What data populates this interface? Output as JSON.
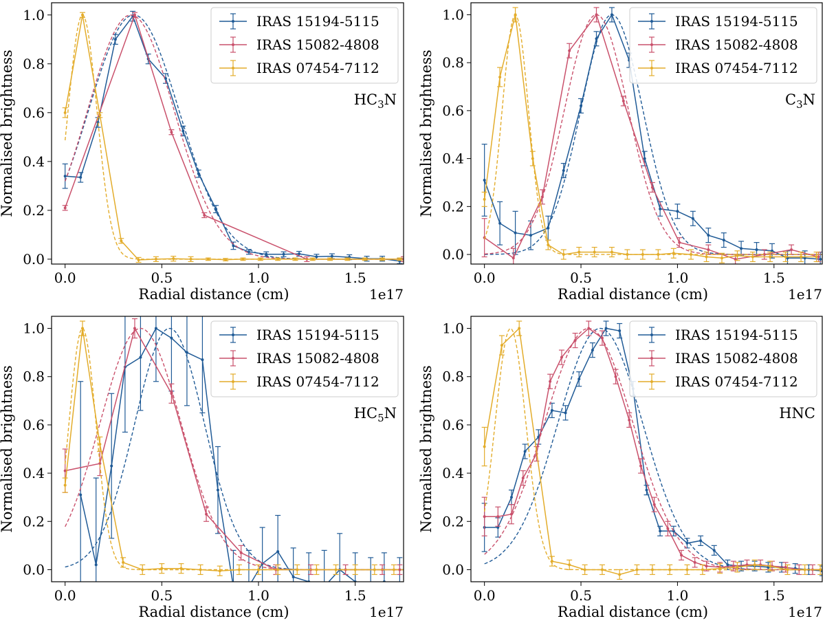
{
  "colors": {
    "blue": "#1f5a96",
    "red": "#c9506b",
    "yellow": "#e3ac2a"
  },
  "chart_data": [
    {
      "type": "line",
      "panel": "top-left",
      "molecule": {
        "base": "HC",
        "sub": "3",
        "rest": "N"
      },
      "xlabel": "Radial distance (cm)",
      "ylabel": "Normalised brightness",
      "x_offset_label": "1e17",
      "xlim": [
        -0.07,
        1.75
      ],
      "ylim": [
        -0.02,
        1.05
      ],
      "xticks": [
        "0.0",
        "0.5",
        "1.0",
        "1.5"
      ],
      "yticks": [
        "0.0",
        "0.2",
        "0.4",
        "0.6",
        "0.8",
        "1.0"
      ],
      "legend": [
        "IRAS 15194-5115",
        "IRAS 15082-4808",
        "IRAS 07454-7112"
      ],
      "legend_position": "top-right",
      "series": [
        {
          "name": "IRAS 15194-5115",
          "color_key": "blue",
          "x": [
            0.0,
            0.08,
            0.17,
            0.26,
            0.35,
            0.43,
            0.52,
            0.61,
            0.69,
            0.78,
            0.87,
            0.95,
            1.04,
            1.13,
            1.21,
            1.3,
            1.38,
            1.47,
            1.56,
            1.64,
            1.73
          ],
          "y": [
            0.34,
            0.335,
            0.56,
            0.9,
            0.995,
            0.82,
            0.74,
            0.525,
            0.35,
            0.205,
            0.055,
            0.03,
            0.02,
            0.02,
            0.022,
            0.01,
            0.012,
            0.008,
            0.002,
            0.002,
            -0.008
          ],
          "err": [
            0.05,
            0.02,
            0.02,
            0.02,
            0.02,
            0.02,
            0.02,
            0.02,
            0.015,
            0.015,
            0.015,
            0.01,
            0.01,
            0.01,
            0.01,
            0.01,
            0.01,
            0.01,
            0.01,
            0.01,
            0.01
          ],
          "fit": {
            "amp": 1.0,
            "mu": 0.355,
            "sigma": 0.235
          }
        },
        {
          "name": "IRAS 15082-4808",
          "color_key": "red",
          "x": [
            0.0,
            0.36,
            0.55,
            0.72,
            1.25,
            1.75
          ],
          "y": [
            0.21,
            1.0,
            0.52,
            0.18,
            0.0,
            0.0
          ],
          "err": [
            0.01,
            0.01,
            0.01,
            0.01,
            0.01,
            0.01
          ],
          "fit": {
            "amp": 1.0,
            "mu": 0.34,
            "sigma": 0.225
          }
        },
        {
          "name": "IRAS 07454-7112",
          "color_key": "yellow",
          "x": [
            0.0,
            0.09,
            0.18,
            0.29,
            0.38,
            0.47,
            0.56,
            0.65,
            0.74,
            0.83,
            0.92,
            1.01,
            1.1,
            1.19,
            1.28,
            1.37,
            1.46,
            1.55,
            1.64,
            1.73
          ],
          "y": [
            0.6,
            1.0,
            0.59,
            0.075,
            -0.003,
            0.0,
            0.002,
            0.0,
            0.0,
            -0.002,
            0.0,
            0.0,
            0.0,
            0.0,
            0.0,
            0.0,
            0.0,
            0.0,
            0.0,
            0.0
          ],
          "err": [
            0.02,
            0.01,
            0.01,
            0.01,
            0.01,
            0.01,
            0.01,
            0.01,
            0.005,
            0.005,
            0.005,
            0.005,
            0.005,
            0.005,
            0.005,
            0.005,
            0.005,
            0.005,
            0.005,
            0.005
          ],
          "fit": {
            "amp": 1.0,
            "mu": 0.09,
            "sigma": 0.075
          }
        }
      ]
    },
    {
      "type": "line",
      "panel": "top-right",
      "molecule": {
        "base": "C",
        "sub": "3",
        "rest": "N"
      },
      "xlabel": "Radial distance (cm)",
      "ylabel": "Normalised brightness",
      "x_offset_label": "1e17",
      "xlim": [
        -0.07,
        1.75
      ],
      "ylim": [
        -0.04,
        1.05
      ],
      "xticks": [
        "0.0",
        "0.5",
        "1.0",
        "1.5"
      ],
      "yticks": [
        "0.0",
        "0.2",
        "0.4",
        "0.6",
        "0.8",
        "1.0"
      ],
      "legend": [
        "IRAS 15194-5115",
        "IRAS 15082-4808",
        "IRAS 07454-7112"
      ],
      "legend_position": "top-right",
      "series": [
        {
          "name": "IRAS 15194-5115",
          "color_key": "blue",
          "x": [
            0.0,
            0.08,
            0.16,
            0.24,
            0.33,
            0.41,
            0.5,
            0.58,
            0.66,
            0.75,
            0.83,
            0.91,
            1.0,
            1.08,
            1.16,
            1.24,
            1.33,
            1.41,
            1.49,
            1.57,
            1.66,
            1.74
          ],
          "y": [
            0.31,
            0.13,
            0.09,
            0.08,
            0.11,
            0.35,
            0.62,
            0.9,
            1.0,
            0.81,
            0.4,
            0.19,
            0.18,
            0.15,
            0.08,
            0.06,
            0.025,
            0.02,
            0.015,
            -0.015,
            -0.015,
            -0.02
          ],
          "err": [
            0.15,
            0.09,
            0.09,
            0.06,
            0.05,
            0.03,
            0.03,
            0.03,
            0.03,
            0.03,
            0.03,
            0.03,
            0.03,
            0.03,
            0.03,
            0.03,
            0.03,
            0.03,
            0.03,
            0.03,
            0.03,
            0.03
          ],
          "fit": {
            "amp": 1.0,
            "mu": 0.66,
            "sigma": 0.16
          }
        },
        {
          "name": "IRAS 15082-4808",
          "color_key": "red",
          "x": [
            0.0,
            0.15,
            0.3,
            0.44,
            0.58,
            0.72,
            0.87,
            1.01,
            1.16,
            1.3,
            1.45,
            1.59,
            1.73
          ],
          "y": [
            0.07,
            -0.015,
            0.24,
            0.85,
            1.0,
            0.64,
            0.28,
            0.05,
            0.02,
            -0.02,
            0.0,
            0.02,
            -0.01
          ],
          "err": [
            0.08,
            0.04,
            0.03,
            0.03,
            0.03,
            0.02,
            0.02,
            0.02,
            0.02,
            0.02,
            0.02,
            0.02,
            0.02
          ],
          "fit": {
            "amp": 1.0,
            "mu": 0.58,
            "sigma": 0.165
          }
        },
        {
          "name": "IRAS 07454-7112",
          "color_key": "yellow",
          "x": [
            0.0,
            0.08,
            0.16,
            0.25,
            0.33,
            0.41,
            0.49,
            0.57,
            0.66,
            0.74,
            0.82,
            0.9,
            0.98,
            1.07,
            1.15,
            1.23,
            1.31,
            1.39,
            1.48,
            1.56,
            1.64,
            1.72
          ],
          "y": [
            0.23,
            0.74,
            1.0,
            0.4,
            0.04,
            0.0,
            0.01,
            0.01,
            0.01,
            0.0,
            0.0,
            0.0,
            0.005,
            0.0,
            -0.01,
            -0.015,
            -0.005,
            -0.01,
            -0.01,
            -0.01,
            -0.01,
            -0.01
          ],
          "err": [
            0.03,
            0.04,
            0.03,
            0.03,
            0.02,
            0.02,
            0.02,
            0.02,
            0.02,
            0.02,
            0.02,
            0.02,
            0.02,
            0.02,
            0.02,
            0.02,
            0.02,
            0.02,
            0.02,
            0.02,
            0.02,
            0.02
          ],
          "fit": {
            "amp": 1.0,
            "mu": 0.16,
            "sigma": 0.068
          }
        }
      ]
    },
    {
      "type": "line",
      "panel": "bottom-left",
      "molecule": {
        "base": "HC",
        "sub": "5",
        "rest": "N"
      },
      "xlabel": "Radial distance (cm)",
      "ylabel": "Normalised brightness",
      "x_offset_label": "1e17",
      "xlim": [
        -0.07,
        1.75
      ],
      "ylim": [
        -0.05,
        1.05
      ],
      "xticks": [
        "0.0",
        "0.5",
        "1.0",
        "1.5"
      ],
      "yticks": [
        "0.0",
        "0.2",
        "0.4",
        "0.6",
        "0.8",
        "1.0"
      ],
      "legend": [
        "IRAS 15194-5115",
        "IRAS 15082-4808",
        "IRAS 07454-7112"
      ],
      "legend_position": "top-right",
      "series": [
        {
          "name": "IRAS 15194-5115",
          "color_key": "blue",
          "x": [
            0.08,
            0.16,
            0.24,
            0.31,
            0.39,
            0.47,
            0.55,
            0.63,
            0.71,
            0.79,
            0.87,
            0.95,
            1.02,
            1.1,
            1.18,
            1.26,
            1.34,
            1.42,
            1.5,
            1.58,
            1.65,
            1.73
          ],
          "y": [
            0.31,
            0.02,
            0.43,
            0.84,
            0.88,
            1.0,
            0.96,
            0.9,
            0.87,
            0.33,
            -0.07,
            -0.07,
            0.025,
            0.075,
            -0.03,
            -0.05,
            -0.07,
            0.0,
            -0.05,
            -0.07,
            -0.05,
            -0.07
          ],
          "err": [
            0.47,
            0.36,
            0.3,
            0.27,
            0.22,
            0.22,
            0.22,
            0.22,
            0.22,
            0.18,
            0.15,
            0.15,
            0.15,
            0.15,
            0.12,
            0.12,
            0.15,
            0.15,
            0.12,
            0.12,
            0.12,
            0.12
          ],
          "fit": {
            "amp": 1.0,
            "mu": 0.54,
            "sigma": 0.18
          }
        },
        {
          "name": "IRAS 15082-4808",
          "color_key": "red",
          "x": [
            0.0,
            0.18,
            0.36,
            0.55,
            0.73,
            0.91,
            1.09,
            1.27,
            1.45,
            1.64,
            1.73
          ],
          "y": [
            0.41,
            0.44,
            1.0,
            0.73,
            0.23,
            0.07,
            0.0,
            0.0,
            0.0,
            0.0,
            0.0
          ],
          "err": [
            0.09,
            0.05,
            0.04,
            0.04,
            0.03,
            0.03,
            0.02,
            0.02,
            0.02,
            0.02,
            0.02
          ],
          "fit": {
            "amp": 1.0,
            "mu": 0.39,
            "sigma": 0.21
          }
        },
        {
          "name": "IRAS 07454-7112",
          "color_key": "yellow",
          "x": [
            0.0,
            0.09,
            0.18,
            0.3,
            0.4,
            0.5,
            0.6,
            0.7,
            0.8,
            0.9,
            1.0,
            1.1,
            1.2,
            1.3,
            1.4,
            1.5,
            1.6,
            1.7
          ],
          "y": [
            0.35,
            1.0,
            0.52,
            0.03,
            0.0,
            0.005,
            0.005,
            0.0,
            -0.005,
            0.0,
            0.0,
            0.0,
            0.0,
            0.0,
            0.0,
            0.0,
            0.0,
            0.0
          ],
          "err": [
            0.03,
            0.03,
            0.03,
            0.02,
            0.02,
            0.02,
            0.02,
            0.02,
            0.02,
            0.02,
            0.02,
            0.02,
            0.02,
            0.02,
            0.02,
            0.02,
            0.02,
            0.02
          ],
          "fit": {
            "amp": 1.0,
            "mu": 0.09,
            "sigma": 0.07
          }
        }
      ]
    },
    {
      "type": "line",
      "panel": "bottom-right",
      "molecule": {
        "base": "HNC",
        "sub": "",
        "rest": ""
      },
      "xlabel": "Radial distance (cm)",
      "ylabel": "Normalised brightness",
      "x_offset_label": "1e17",
      "xlim": [
        -0.07,
        1.75
      ],
      "ylim": [
        -0.05,
        1.05
      ],
      "xticks": [
        "0.0",
        "0.5",
        "1.0",
        "1.5"
      ],
      "yticks": [
        "0.0",
        "0.2",
        "0.4",
        "0.6",
        "0.8",
        "1.0"
      ],
      "legend": [
        "IRAS 15194-5115",
        "IRAS 15082-4808",
        "IRAS 07454-7112"
      ],
      "legend_position": "top-right",
      "series": [
        {
          "name": "IRAS 15194-5115",
          "color_key": "blue",
          "x": [
            0.0,
            0.07,
            0.14,
            0.21,
            0.28,
            0.35,
            0.42,
            0.49,
            0.56,
            0.63,
            0.7,
            0.77,
            0.84,
            0.91,
            0.98,
            1.05,
            1.12,
            1.19,
            1.26,
            1.33,
            1.4,
            1.47,
            1.54,
            1.61,
            1.68,
            1.75
          ],
          "y": [
            0.175,
            0.175,
            0.3,
            0.49,
            0.55,
            0.66,
            0.65,
            0.79,
            0.91,
            1.0,
            0.99,
            0.75,
            0.33,
            0.16,
            0.16,
            0.11,
            0.12,
            0.08,
            0.02,
            0.015,
            0.015,
            0.01,
            0.01,
            0.005,
            0.0,
            -0.005
          ],
          "err": [
            0.1,
            0.04,
            0.03,
            0.03,
            0.03,
            0.03,
            0.03,
            0.03,
            0.03,
            0.03,
            0.03,
            0.03,
            0.02,
            0.02,
            0.02,
            0.02,
            0.02,
            0.02,
            0.02,
            0.02,
            0.02,
            0.02,
            0.02,
            0.02,
            0.02,
            0.02
          ],
          "fit": {
            "amp": 1.0,
            "mu": 0.6,
            "sigma": 0.22
          }
        },
        {
          "name": "IRAS 15082-4808",
          "color_key": "red",
          "x": [
            0.0,
            0.07,
            0.14,
            0.2,
            0.27,
            0.34,
            0.4,
            0.47,
            0.54,
            0.61,
            0.68,
            0.75,
            0.81,
            0.88,
            0.95,
            1.02,
            1.09,
            1.15,
            1.22,
            1.29,
            1.36,
            1.43,
            1.49,
            1.56,
            1.63,
            1.7
          ],
          "y": [
            0.22,
            0.22,
            0.23,
            0.38,
            0.48,
            0.78,
            0.88,
            0.95,
            1.0,
            0.96,
            0.8,
            0.62,
            0.43,
            0.27,
            0.17,
            0.06,
            0.03,
            0.015,
            0.01,
            0.015,
            0.02,
            0.02,
            0.015,
            0.01,
            0.0,
            0.0
          ],
          "err": [
            0.08,
            0.04,
            0.04,
            0.03,
            0.03,
            0.03,
            0.03,
            0.03,
            0.03,
            0.03,
            0.03,
            0.03,
            0.03,
            0.03,
            0.03,
            0.02,
            0.02,
            0.02,
            0.02,
            0.02,
            0.02,
            0.02,
            0.02,
            0.02,
            0.02,
            0.02
          ],
          "fit": {
            "amp": 1.0,
            "mu": 0.54,
            "sigma": 0.23
          }
        },
        {
          "name": "IRAS 07454-7112",
          "color_key": "yellow",
          "x": [
            0.0,
            0.09,
            0.18,
            0.35,
            0.44,
            0.52,
            0.61,
            0.7,
            0.79,
            0.87,
            0.96,
            1.05,
            1.13,
            1.22,
            1.31,
            1.4,
            1.48,
            1.57,
            1.66,
            1.74
          ],
          "y": [
            0.51,
            0.93,
            1.0,
            0.035,
            0.02,
            0.0,
            0.0,
            -0.02,
            0.0,
            0.0,
            0.0,
            0.0,
            0.0,
            0.005,
            0.01,
            0.02,
            0.015,
            0.0,
            0.0,
            0.0
          ],
          "err": [
            0.08,
            0.04,
            0.03,
            0.02,
            0.02,
            0.02,
            0.02,
            0.02,
            0.02,
            0.02,
            0.02,
            0.02,
            0.02,
            0.02,
            0.02,
            0.02,
            0.02,
            0.02,
            0.02,
            0.02
          ],
          "fit": {
            "amp": 1.0,
            "mu": 0.135,
            "sigma": 0.08
          }
        }
      ]
    }
  ]
}
